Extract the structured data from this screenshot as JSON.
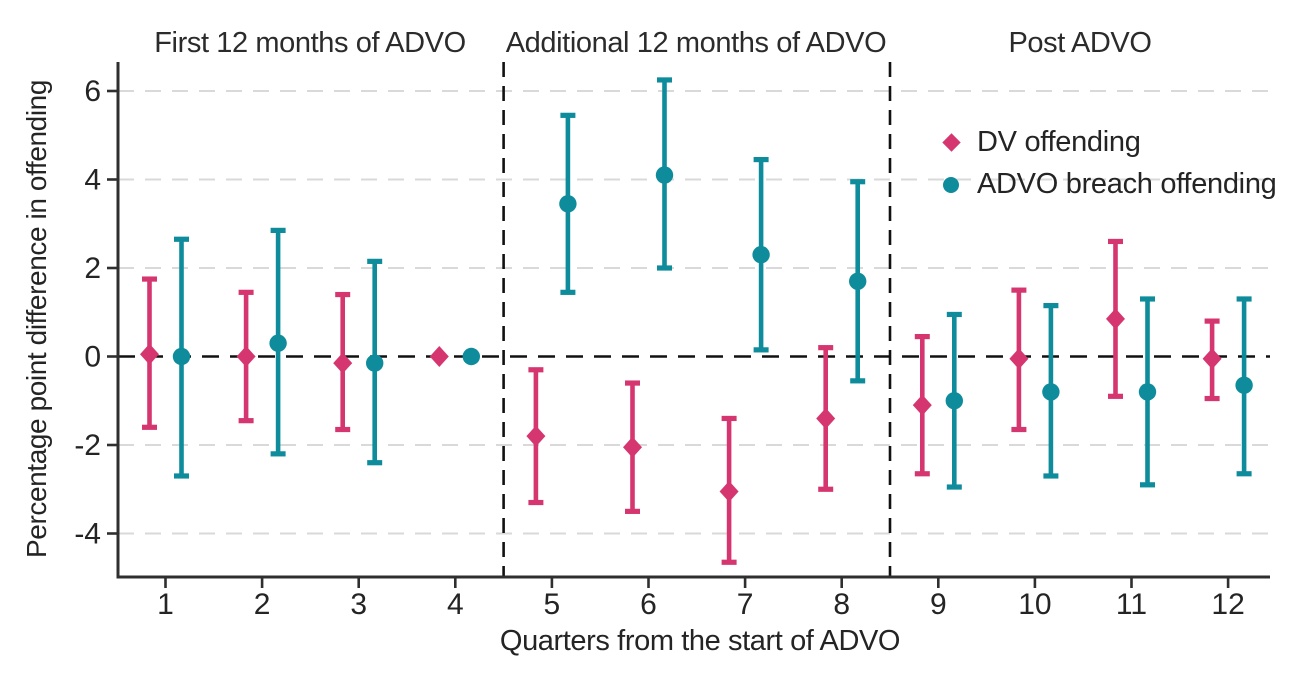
{
  "chart_data": {
    "type": "scatter",
    "error_bars": true,
    "title": "",
    "xlabel": "Quarters from the start of ADVO",
    "ylabel": "Percentage point difference in offending",
    "x": [
      1,
      2,
      3,
      4,
      5,
      6,
      7,
      8,
      9,
      10,
      11,
      12
    ],
    "xlim": [
      0.5,
      12.5
    ],
    "ylim": [
      -5,
      6.6
    ],
    "yticks": [
      6,
      4,
      2,
      0,
      -2,
      -4
    ],
    "grid": "dashed-horizontal",
    "reference_line_y": 0,
    "legend_position": "inside-top-right",
    "panels": [
      {
        "title": "First 12 months of ADVO",
        "x_range": [
          1,
          4
        ]
      },
      {
        "title": "Additional 12 months of ADVO",
        "x_range": [
          5,
          8
        ]
      },
      {
        "title": "Post ADVO",
        "x_range": [
          9,
          12
        ]
      }
    ],
    "panel_dividers_x": [
      4.5,
      8.5
    ],
    "series": [
      {
        "name": "DV offending",
        "marker": "diamond",
        "color": "#d6366f",
        "points": [
          {
            "x": 1,
            "y": 0.05,
            "ci_low": -1.6,
            "ci_high": 1.75
          },
          {
            "x": 2,
            "y": 0.0,
            "ci_low": -1.45,
            "ci_high": 1.45
          },
          {
            "x": 3,
            "y": -0.15,
            "ci_low": -1.65,
            "ci_high": 1.4
          },
          {
            "x": 4,
            "y": 0.0,
            "ci_low": 0.0,
            "ci_high": 0.0
          },
          {
            "x": 5,
            "y": -1.8,
            "ci_low": -3.3,
            "ci_high": -0.3
          },
          {
            "x": 6,
            "y": -2.05,
            "ci_low": -3.5,
            "ci_high": -0.6
          },
          {
            "x": 7,
            "y": -3.05,
            "ci_low": -4.65,
            "ci_high": -1.4
          },
          {
            "x": 8,
            "y": -1.4,
            "ci_low": -3.0,
            "ci_high": 0.2
          },
          {
            "x": 9,
            "y": -1.1,
            "ci_low": -2.65,
            "ci_high": 0.45
          },
          {
            "x": 10,
            "y": -0.05,
            "ci_low": -1.65,
            "ci_high": 1.5
          },
          {
            "x": 11,
            "y": 0.85,
            "ci_low": -0.9,
            "ci_high": 2.6
          },
          {
            "x": 12,
            "y": -0.05,
            "ci_low": -0.95,
            "ci_high": 0.8
          }
        ]
      },
      {
        "name": "ADVO breach offending",
        "marker": "circle",
        "color": "#0e8c9c",
        "points": [
          {
            "x": 1,
            "y": 0.0,
            "ci_low": -2.7,
            "ci_high": 2.65
          },
          {
            "x": 2,
            "y": 0.3,
            "ci_low": -2.2,
            "ci_high": 2.85
          },
          {
            "x": 3,
            "y": -0.15,
            "ci_low": -2.4,
            "ci_high": 2.15
          },
          {
            "x": 4,
            "y": 0.0,
            "ci_low": 0.0,
            "ci_high": 0.0
          },
          {
            "x": 5,
            "y": 3.45,
            "ci_low": 1.45,
            "ci_high": 5.45
          },
          {
            "x": 6,
            "y": 4.1,
            "ci_low": 2.0,
            "ci_high": 6.25
          },
          {
            "x": 7,
            "y": 2.3,
            "ci_low": 0.15,
            "ci_high": 4.45
          },
          {
            "x": 8,
            "y": 1.7,
            "ci_low": -0.55,
            "ci_high": 3.95
          },
          {
            "x": 9,
            "y": -1.0,
            "ci_low": -2.95,
            "ci_high": 0.95
          },
          {
            "x": 10,
            "y": -0.8,
            "ci_low": -2.7,
            "ci_high": 1.15
          },
          {
            "x": 11,
            "y": -0.8,
            "ci_low": -2.9,
            "ci_high": 1.3
          },
          {
            "x": 12,
            "y": -0.65,
            "ci_low": -2.65,
            "ci_high": 1.3
          }
        ]
      }
    ],
    "colors": {
      "dv": "#d6366f",
      "breach": "#0e8c9c",
      "zero_line": "#111111",
      "divider": "#111111",
      "gridline": "#d9d9d9",
      "axis": "#2f2f2f",
      "text": "#242424"
    }
  }
}
